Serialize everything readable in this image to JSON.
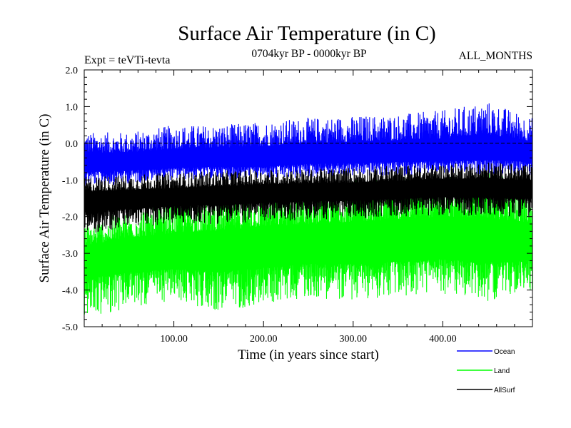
{
  "chart_data": {
    "type": "line",
    "title": "Surface Air Temperature (in C)",
    "subtitle": "0704kyr BP - 0000kyr BP",
    "left_note": "Expt = teVTi-tevta",
    "right_note": "ALL_MONTHS",
    "xlabel": "Time (in years since start)",
    "ylabel": "Surface Air Temperature (in C)",
    "xlim": [
      0,
      500
    ],
    "ylim": [
      -5.0,
      2.0
    ],
    "x_ticks": [
      100,
      200,
      300,
      400
    ],
    "x_tick_labels": [
      "100.00",
      "200.00",
      "300.00",
      "400.00"
    ],
    "y_ticks": [
      -5,
      -4,
      -3,
      -2,
      -1,
      0,
      1,
      2
    ],
    "y_tick_labels": [
      "-5.0",
      "-4.0",
      "-3.0",
      "-2.0",
      "-1.0",
      "0.0",
      "1.0",
      "2.0"
    ],
    "reference_line": 0.0,
    "legend_placement": "bottom-right",
    "series": [
      {
        "name": "Ocean",
        "color": "#0000ff",
        "x": [
          0,
          50,
          100,
          150,
          200,
          250,
          300,
          350,
          400,
          450,
          500
        ],
        "mean": [
          -0.55,
          -0.55,
          -0.5,
          -0.45,
          -0.45,
          -0.35,
          -0.35,
          -0.3,
          -0.3,
          -0.25,
          -0.3
        ],
        "min": [
          -1.2,
          -1.1,
          -1.0,
          -1.0,
          -1.0,
          -0.95,
          -0.9,
          -0.9,
          -0.85,
          -0.85,
          -0.9
        ],
        "max": [
          0.3,
          0.3,
          0.5,
          0.5,
          0.6,
          0.7,
          0.75,
          0.8,
          0.9,
          1.15,
          0.7
        ]
      },
      {
        "name": "Land",
        "color": "#00ff00",
        "x": [
          0,
          50,
          100,
          150,
          200,
          250,
          300,
          350,
          400,
          450,
          500
        ],
        "mean": [
          -3.1,
          -3.0,
          -2.95,
          -2.9,
          -2.85,
          -2.8,
          -2.75,
          -2.7,
          -2.65,
          -2.7,
          -2.75
        ],
        "min": [
          -4.8,
          -4.5,
          -4.3,
          -4.6,
          -4.4,
          -4.2,
          -4.3,
          -4.2,
          -4.1,
          -4.3,
          -4.0
        ],
        "max": [
          -2.2,
          -1.8,
          -1.5,
          -1.4,
          -1.2,
          -1.1,
          -1.0,
          -0.9,
          -0.8,
          -0.8,
          -1.1
        ]
      },
      {
        "name": "AllSurf",
        "color": "#000000",
        "x": [
          0,
          50,
          100,
          150,
          200,
          250,
          300,
          350,
          400,
          450,
          500
        ],
        "mean": [
          -1.55,
          -1.5,
          -1.45,
          -1.4,
          -1.35,
          -1.3,
          -1.3,
          -1.25,
          -1.2,
          -1.2,
          -1.25
        ],
        "min": [
          -2.5,
          -2.3,
          -2.2,
          -2.2,
          -2.15,
          -2.1,
          -2.05,
          -2.0,
          -1.95,
          -2.0,
          -2.0
        ],
        "max": [
          -0.9,
          -0.85,
          -0.8,
          -0.75,
          -0.7,
          -0.7,
          -0.65,
          -0.6,
          -0.55,
          -0.5,
          -0.6
        ]
      }
    ]
  }
}
